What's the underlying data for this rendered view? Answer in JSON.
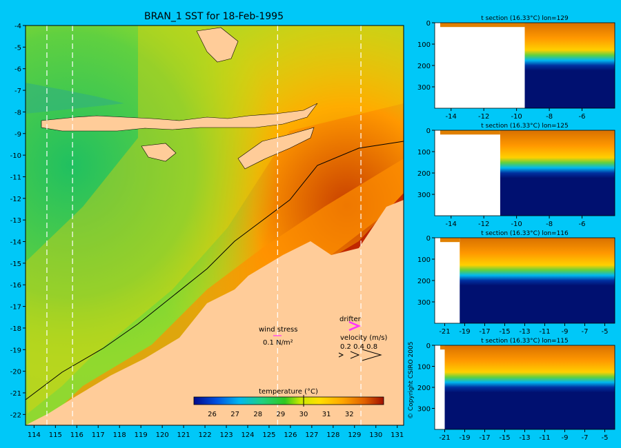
{
  "title": "BRAN_1 SST for 18-Feb-1995",
  "copyright": "© Copyright CSIRO 2005",
  "colors": {
    "background": "#00c8f8",
    "land": "#ffcc99",
    "deep": "#001070",
    "drifter": "#ff33ff",
    "wind": "#ff33ff"
  },
  "chart_data": [
    {
      "type": "heatmap",
      "title": "BRAN_1 SST for 18-Feb-1995",
      "xlabel": "",
      "ylabel": "",
      "xlim": [
        113.6,
        131.3
      ],
      "ylim": [
        -22.5,
        -4
      ],
      "x_ticks": [
        114,
        115,
        116,
        117,
        118,
        119,
        120,
        121,
        122,
        123,
        124,
        125,
        126,
        127,
        128,
        129,
        130,
        131
      ],
      "y_ticks": [
        -4,
        -5,
        -6,
        -7,
        -8,
        -9,
        -10,
        -11,
        -12,
        -13,
        -14,
        -15,
        -16,
        -17,
        -18,
        -19,
        -20,
        -21,
        -22
      ],
      "section_lines_lon": [
        114.6,
        115.8,
        125.4,
        129.3
      ],
      "colorbar": {
        "label": "temperature (°C)",
        "range": [
          25.2,
          33.5
        ],
        "ticks": [
          26,
          27,
          28,
          29,
          30,
          31,
          32
        ],
        "marker": 30
      },
      "legend": {
        "wind_label": "wind stress",
        "wind_unit": "0.1 N/m²",
        "drifter_label": "drifter",
        "velocity_label": "velocity (m/s)",
        "velocity_values": "0.2 0.4 0.8"
      }
    },
    {
      "type": "heatmap",
      "title": "t section (16.33°C) lon=129",
      "xlim": [
        -15,
        -4
      ],
      "ylim": [
        0,
        400
      ],
      "x_ticks": [
        -14,
        -12,
        -10,
        -8,
        -6
      ],
      "y_ticks": [
        0,
        100,
        200,
        300
      ],
      "layers": {
        "surface": 28.5,
        "thermocline_depth": 155,
        "deep": 16
      },
      "land_until_x": -9.5
    },
    {
      "type": "heatmap",
      "title": "t section (16.33°C) lon=125",
      "xlim": [
        -15,
        -4
      ],
      "ylim": [
        0,
        400
      ],
      "x_ticks": [
        -14,
        -12,
        -10,
        -8,
        -6
      ],
      "y_ticks": [
        0,
        100,
        200,
        300
      ],
      "layers": {
        "surface": 28.5,
        "thermocline_depth": 140,
        "deep": 16
      },
      "land_until_x": -11.0
    },
    {
      "type": "heatmap",
      "title": "t section (16.33°C) lon=116",
      "xlim": [
        -22,
        -4
      ],
      "ylim": [
        0,
        400
      ],
      "x_ticks": [
        -21,
        -19,
        -17,
        -15,
        -13,
        -11,
        -9,
        -7,
        -5
      ],
      "y_ticks": [
        0,
        100,
        200,
        300
      ],
      "layers": {
        "surface": 29,
        "thermocline_depth": 145,
        "deep": 16
      },
      "land_until_x": -19.5
    },
    {
      "type": "heatmap",
      "title": "t section (16.33°C) lon=115",
      "xlim": [
        -22,
        -4
      ],
      "ylim": [
        0,
        400
      ],
      "x_ticks": [
        -21,
        -19,
        -17,
        -15,
        -13,
        -11,
        -9,
        -7,
        -5
      ],
      "y_ticks": [
        0,
        100,
        200,
        300
      ],
      "layers": {
        "surface": 29,
        "thermocline_depth": 150,
        "deep": 16
      },
      "land_until_x": -21.0
    }
  ]
}
